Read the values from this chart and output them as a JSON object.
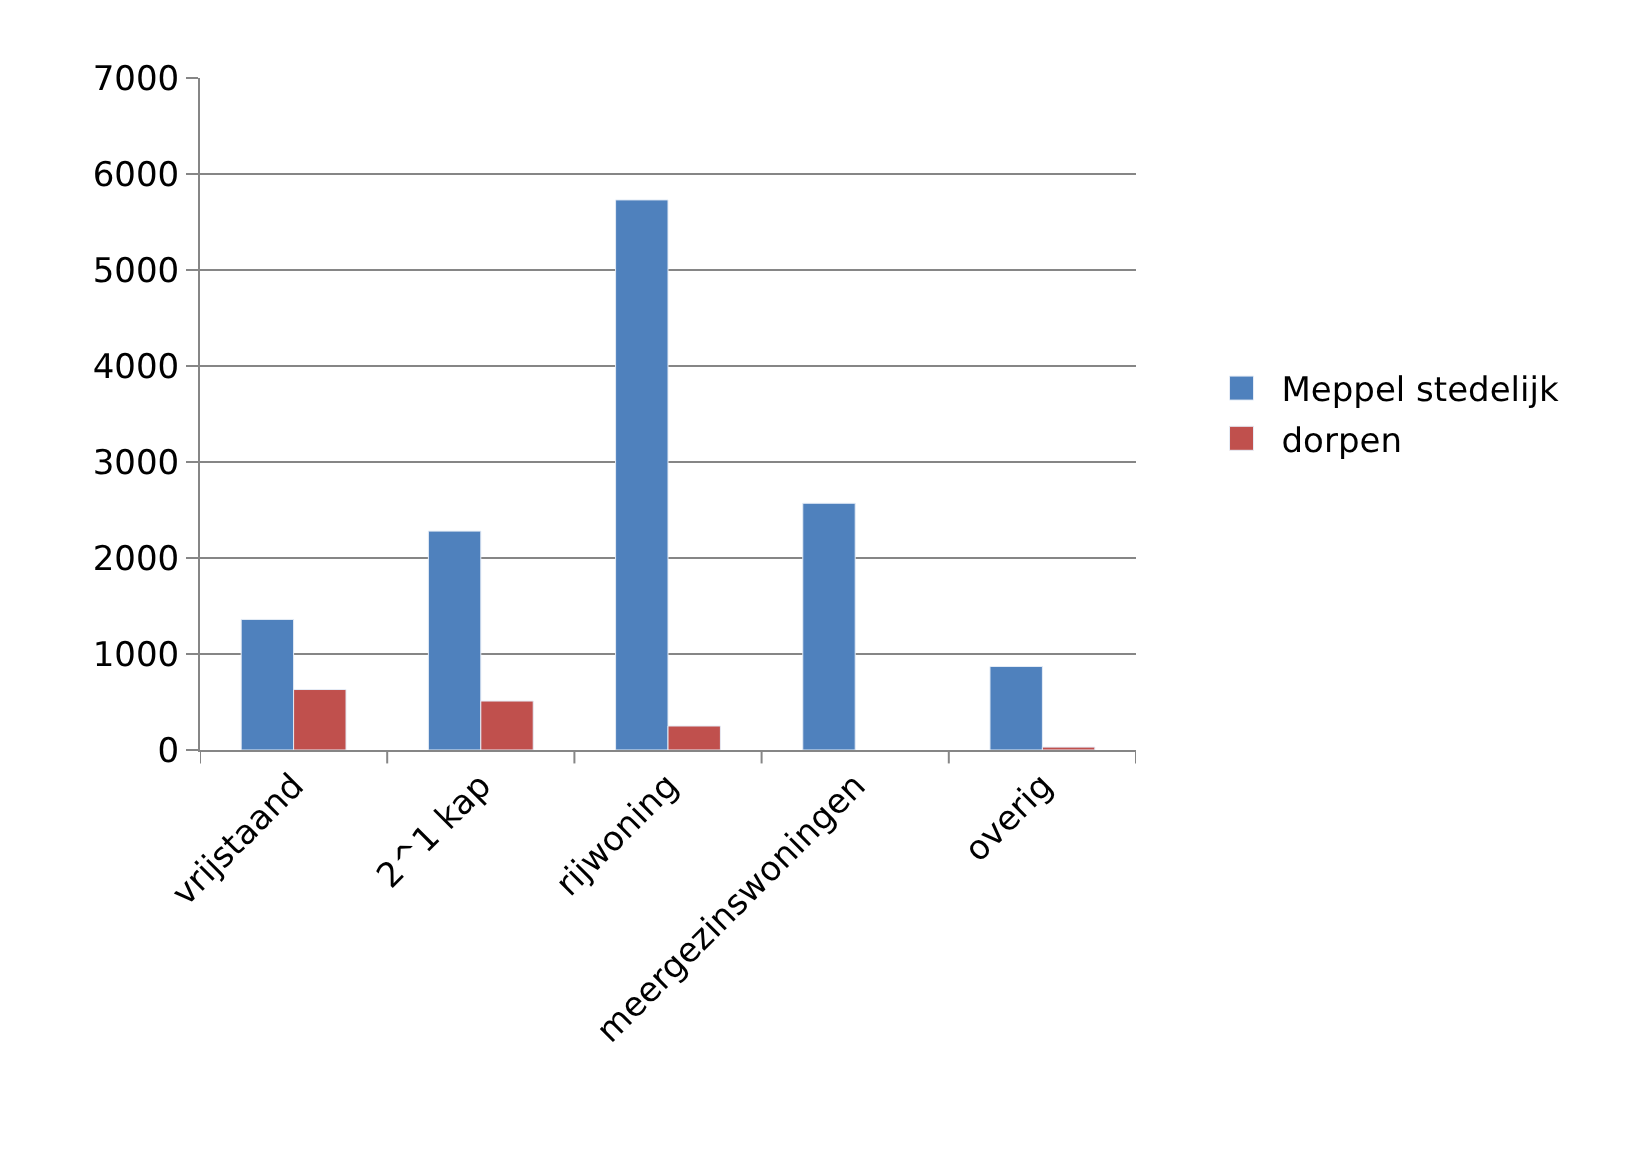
{
  "chart_data": {
    "type": "bar",
    "categories": [
      "vrijstaand",
      "2^1 kap",
      "rijwoning",
      "meergezinswoningen",
      "overig"
    ],
    "series": [
      {
        "name": "Meppel stedelijk",
        "color": "#4f81bd",
        "values": [
          1360,
          2280,
          5730,
          2570,
          870
        ]
      },
      {
        "name": "dorpen",
        "color": "#c0504d",
        "values": [
          630,
          510,
          250,
          null,
          30
        ]
      }
    ],
    "ylim": [
      0,
      7000
    ],
    "yticks": [
      0,
      1000,
      2000,
      3000,
      4000,
      5000,
      6000,
      7000
    ],
    "grid": "y",
    "legend": "right"
  }
}
